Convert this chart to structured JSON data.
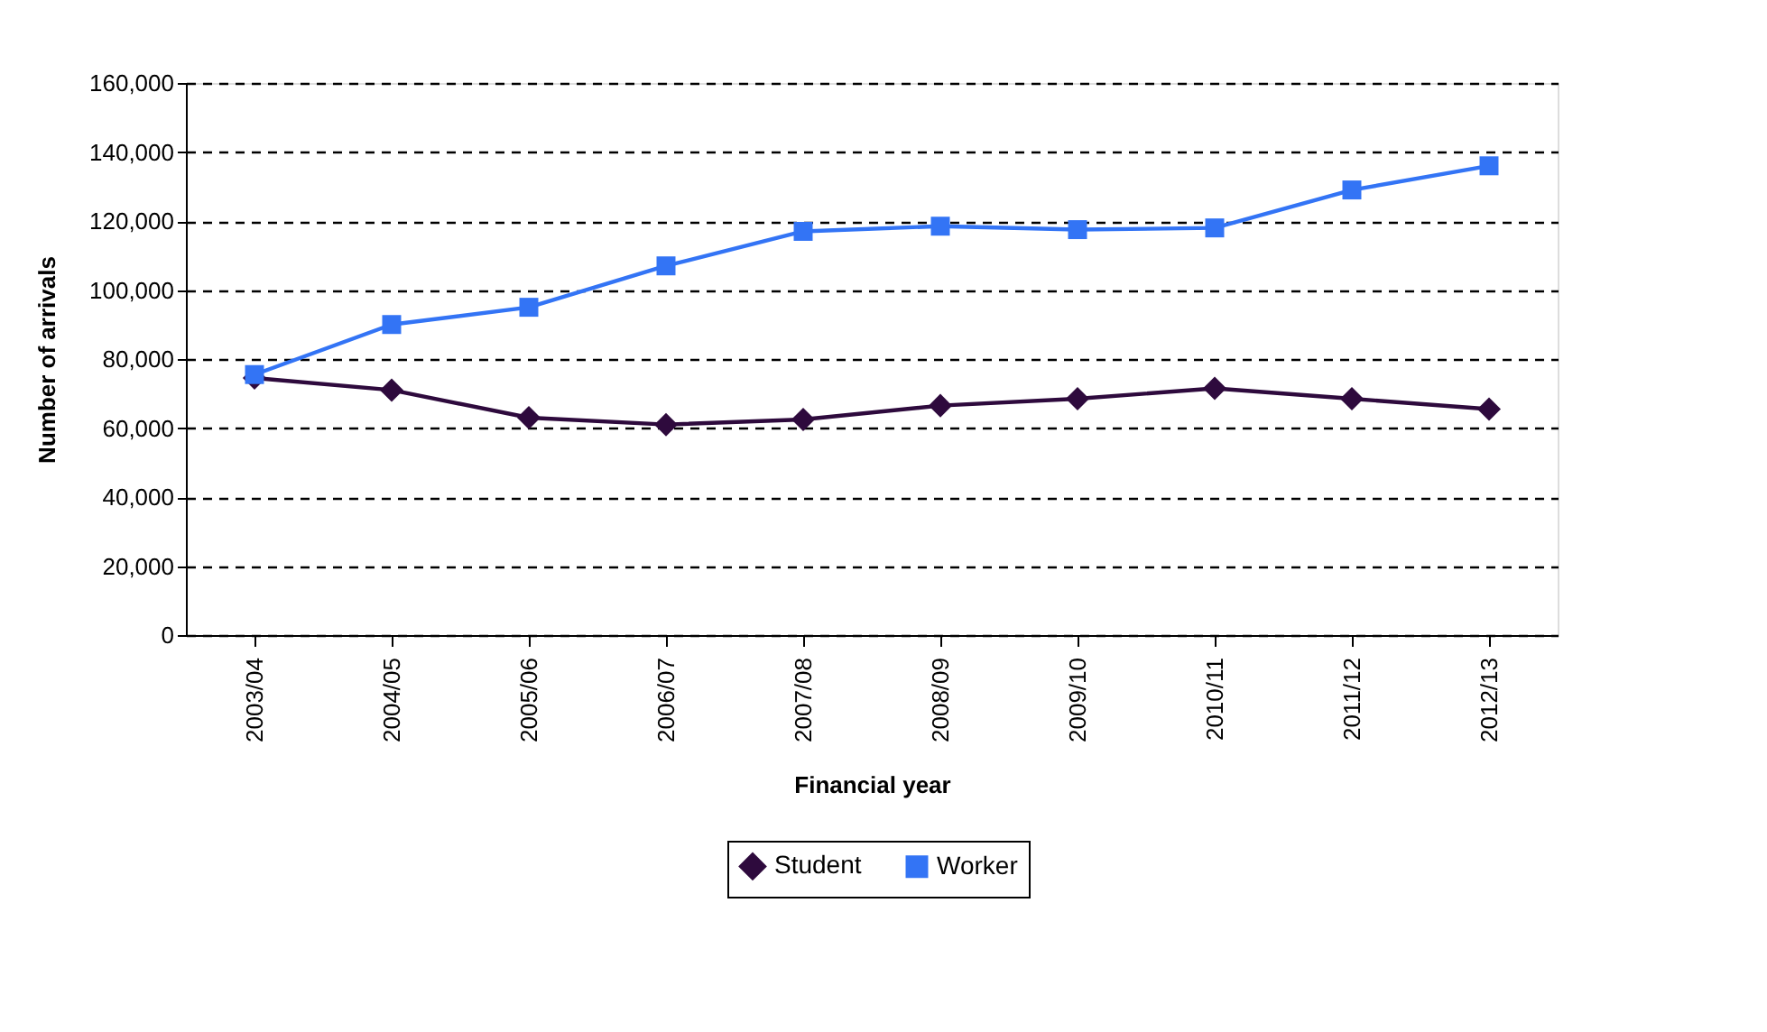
{
  "chart_data": {
    "type": "line",
    "xlabel": "Financial year",
    "ylabel": "Number of arrivals",
    "categories": [
      "2003/04",
      "2004/05",
      "2005/06",
      "2006/07",
      "2007/08",
      "2008/09",
      "2009/10",
      "2010/11",
      "2011/12",
      "2012/13"
    ],
    "series": [
      {
        "name": "Student",
        "color": "#2e0a3d",
        "marker": "diamond",
        "values": [
          74500,
          71000,
          63000,
          61000,
          62500,
          66500,
          68500,
          71500,
          68500,
          65500
        ]
      },
      {
        "name": "Worker",
        "color": "#3374f5",
        "marker": "square",
        "values": [
          75500,
          90000,
          95000,
          107000,
          117000,
          118500,
          117500,
          118000,
          129000,
          136000
        ]
      }
    ],
    "ylim": [
      0,
      160000
    ],
    "yticks": [
      {
        "value": 0,
        "label": "0"
      },
      {
        "value": 20000,
        "label": "20,000"
      },
      {
        "value": 40000,
        "label": "40,000"
      },
      {
        "value": 60000,
        "label": "60,000"
      },
      {
        "value": 80000,
        "label": "80,000"
      },
      {
        "value": 100000,
        "label": "100,000"
      },
      {
        "value": 120000,
        "label": "120,000"
      },
      {
        "value": 140000,
        "label": "140,000"
      },
      {
        "value": 160000,
        "label": "160,000"
      }
    ],
    "grid": "y",
    "line_style": "solid",
    "legend": "bottom"
  }
}
